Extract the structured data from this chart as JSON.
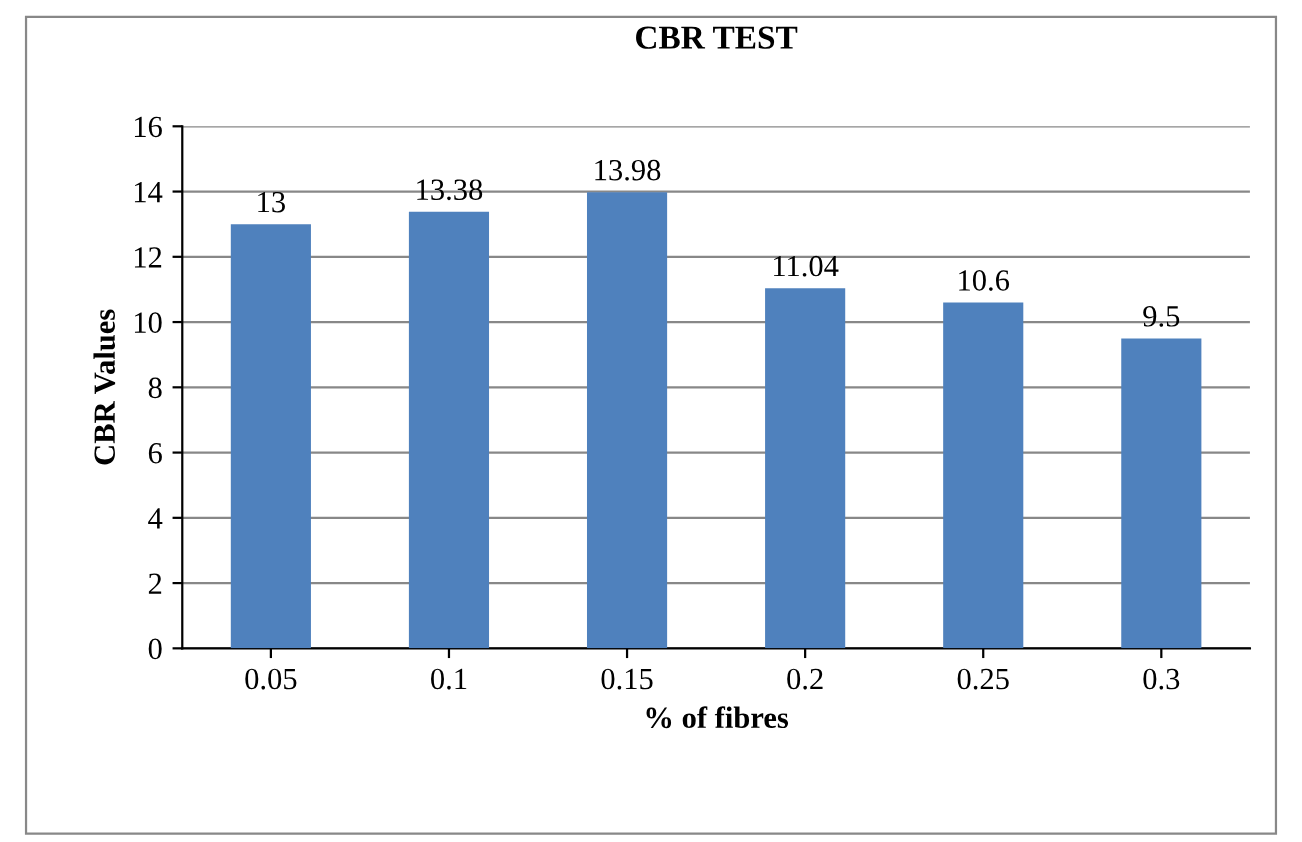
{
  "chart_data": {
    "type": "bar",
    "title": "CBR TEST",
    "xlabel": "% of fibres",
    "ylabel": "CBR Values",
    "categories": [
      "0.05",
      "0.1",
      "0.15",
      "0.2",
      "0.25",
      "0.3"
    ],
    "values": [
      13,
      13.38,
      13.98,
      11.04,
      10.6,
      9.5
    ],
    "color": "#4f81bd",
    "data_labels": true,
    "ylim": [
      0,
      16
    ],
    "yticks": [
      0,
      2,
      4,
      6,
      8,
      10,
      12,
      14,
      16
    ],
    "grid": "y",
    "legend": false
  }
}
